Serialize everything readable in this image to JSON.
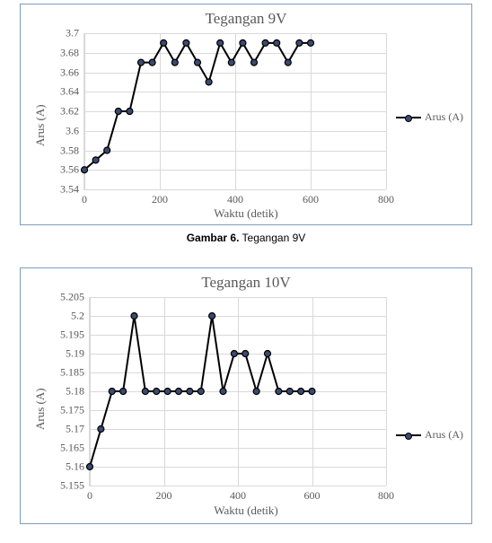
{
  "chart1": {
    "type": "line-scatter",
    "title": "Tegangan 9V",
    "title_fontsize": 17,
    "title_color": "#595959",
    "xlabel": "Waktu (detik)",
    "ylabel": "Arus (A)",
    "label_fontsize": 13,
    "tick_fontsize": 12,
    "legend_label": "Arus (A)",
    "line_color": "#000000",
    "line_width": 2,
    "marker_face": "#3a4a70",
    "marker_edge": "#000000",
    "marker_radius": 3.5,
    "background_color": "#ffffff",
    "grid_color": "#d9d9d9",
    "border_color": "#7f9db9",
    "xlim": [
      0,
      800
    ],
    "xticks": [
      0,
      200,
      400,
      600,
      800
    ],
    "ylim": [
      3.54,
      3.7
    ],
    "yticks": [
      3.54,
      3.56,
      3.58,
      3.6,
      3.62,
      3.64,
      3.66,
      3.68,
      3.7
    ],
    "x": [
      0,
      30,
      60,
      90,
      120,
      150,
      180,
      210,
      240,
      270,
      300,
      330,
      360,
      390,
      420,
      450,
      480,
      510,
      540,
      570,
      600
    ],
    "y": [
      3.56,
      3.57,
      3.58,
      3.62,
      3.62,
      3.67,
      3.67,
      3.69,
      3.67,
      3.69,
      3.67,
      3.65,
      3.69,
      3.67,
      3.69,
      3.67,
      3.69,
      3.69,
      3.67,
      3.69,
      3.69
    ]
  },
  "caption1": {
    "bold": "Gambar 6.",
    "rest": " Tegangan 9V"
  },
  "chart2": {
    "type": "line-scatter",
    "title": "Tegangan 10V",
    "title_fontsize": 17,
    "title_color": "#595959",
    "xlabel": "Waktu (detik)",
    "ylabel": "Arus (A)",
    "label_fontsize": 13,
    "tick_fontsize": 12,
    "legend_label": "Arus (A)",
    "line_color": "#000000",
    "line_width": 2,
    "marker_face": "#3a4a70",
    "marker_edge": "#000000",
    "marker_radius": 3.5,
    "background_color": "#ffffff",
    "grid_color": "#d9d9d9",
    "border_color": "#7f9db9",
    "xlim": [
      0,
      800
    ],
    "xticks": [
      0,
      200,
      400,
      600,
      800
    ],
    "ylim": [
      5.155,
      5.205
    ],
    "yticks": [
      5.155,
      5.16,
      5.165,
      5.17,
      5.175,
      5.18,
      5.185,
      5.19,
      5.195,
      5.2,
      5.205
    ],
    "x": [
      0,
      30,
      60,
      90,
      120,
      150,
      180,
      210,
      240,
      270,
      300,
      330,
      360,
      390,
      420,
      450,
      480,
      510,
      540,
      570,
      600
    ],
    "y": [
      5.16,
      5.17,
      5.18,
      5.18,
      5.2,
      5.18,
      5.18,
      5.18,
      5.18,
      5.18,
      5.18,
      5.2,
      5.18,
      5.19,
      5.19,
      5.18,
      5.19,
      5.18,
      5.18,
      5.18,
      5.18
    ]
  }
}
